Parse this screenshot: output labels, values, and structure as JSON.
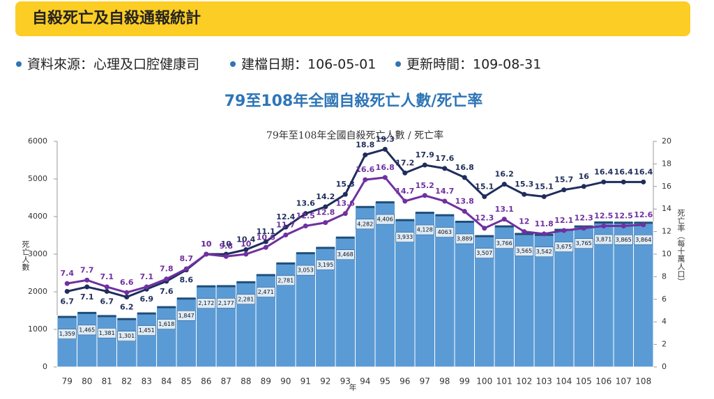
{
  "header": {
    "title": "自殺死亡及自殺通報統計"
  },
  "meta": [
    "資料來源：心理及口腔健康司",
    "建檔日期：106-05-01",
    "更新時間：109-08-31"
  ],
  "chart_data": {
    "type": "bar-line",
    "title": "79至108年全國自殺死亡人數/死亡率",
    "subtitle": "79年至108年全國自殺死亡人數 / 死亡率",
    "x_label": "年",
    "y_label": "死亡人數",
    "y2_label": "死亡率（每十萬人口）",
    "categories": [
      "79",
      "80",
      "81",
      "82",
      "83",
      "84",
      "85",
      "86",
      "87",
      "88",
      "89",
      "90",
      "91",
      "92",
      "93",
      "94",
      "95",
      "96",
      "97",
      "98",
      "99",
      "100",
      "101",
      "102",
      "103",
      "104",
      "105",
      "106",
      "107",
      "108"
    ],
    "values": [
      1359,
      1465,
      1381,
      1301,
      1451,
      1618,
      1847,
      2172,
      2177,
      2281,
      2471,
      2781,
      3053,
      3195,
      3468,
      4282,
      4406,
      3933,
      4128,
      4063,
      3889,
      3507,
      3766,
      3565,
      3542,
      3675,
      3765,
      3871,
      3865,
      3864
    ],
    "value_labels": [
      "1,359",
      "1,465",
      "1,381",
      "1,301",
      "1,451",
      "1,618",
      "1,847",
      "2,172",
      "2,177",
      "2,281",
      "2,471",
      "2,781",
      "3,053",
      "3,195",
      "3,468",
      "4,282",
      "4,406",
      "3,933",
      "4,128",
      "4063",
      "3,889",
      "3,507",
      "3,766",
      "3,565",
      "3,542",
      "3,675",
      "3,765",
      "3,871",
      "3,865",
      "3,864"
    ],
    "color": "#5b9bd5",
    "series": [
      {
        "color": "#1f2d5c",
        "axis": "y2",
        "values": [
          6.7,
          7.1,
          6.7,
          6.2,
          6.9,
          7.6,
          8.6,
          10,
          10,
          10.4,
          11.1,
          12.4,
          13.6,
          14.2,
          15.3,
          18.8,
          19.3,
          17.2,
          17.9,
          17.6,
          16.8,
          15.1,
          16.2,
          15.3,
          15.1,
          15.7,
          16,
          16.4,
          16.4,
          16.4
        ]
      },
      {
        "color": "#7030a0",
        "axis": "y2",
        "values": [
          7.4,
          7.7,
          7.1,
          6.6,
          7.1,
          7.8,
          8.7,
          10,
          9.8,
          10,
          10.6,
          11.7,
          12.5,
          12.8,
          13.6,
          16.6,
          16.8,
          14.7,
          15.2,
          14.7,
          13.8,
          12.3,
          13.1,
          12,
          11.8,
          12.1,
          12.3,
          12.5,
          12.5,
          12.6
        ]
      }
    ],
    "ylim": [
      0,
      6000
    ],
    "yticks": [
      0,
      1000,
      2000,
      3000,
      4000,
      5000,
      6000
    ],
    "y2lim": [
      0,
      20
    ],
    "y2ticks": [
      0,
      2,
      4,
      6,
      8,
      10,
      12,
      14,
      16,
      18,
      20
    ]
  }
}
